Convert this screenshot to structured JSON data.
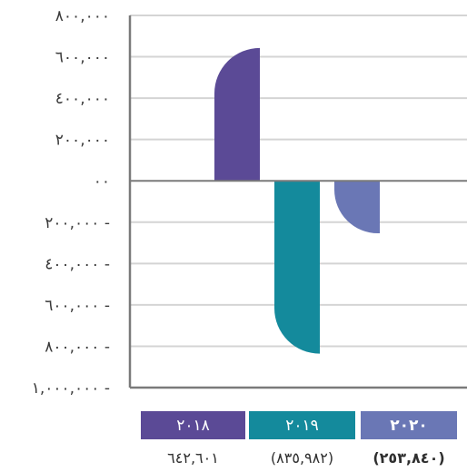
{
  "chart_data": {
    "type": "bar",
    "categories": [
      "٢٠١٨",
      "٢٠١٩",
      "٢٠٢٠"
    ],
    "values": [
      642601,
      -835982,
      -253840
    ],
    "value_labels": [
      "٦٤٢,٦٠١",
      "(٨٣٥,٩٨٢)",
      "(٢٥٣,٨٤٠)"
    ],
    "colors": [
      "#5b4a96",
      "#148a9c",
      "#6a77b5"
    ],
    "ylim": [
      -1000000,
      800000
    ],
    "yticks": [
      800000,
      600000,
      400000,
      200000,
      0,
      -200000,
      -400000,
      -600000,
      -800000,
      -1000000
    ],
    "ytick_labels": [
      "٨٠٠,٠٠٠",
      "٦٠٠,٠٠٠",
      "٤٠٠,٠٠٠",
      "٢٠٠,٠٠٠",
      "٠٠",
      "٢٠٠,٠٠٠ -",
      "٤٠٠,٠٠٠ -",
      "٦٠٠,٠٠٠ -",
      "٨٠٠,٠٠٠ -",
      "١,٠٠٠,٠٠٠ -"
    ],
    "grid": true,
    "title": "",
    "xlabel": "",
    "ylabel": ""
  }
}
